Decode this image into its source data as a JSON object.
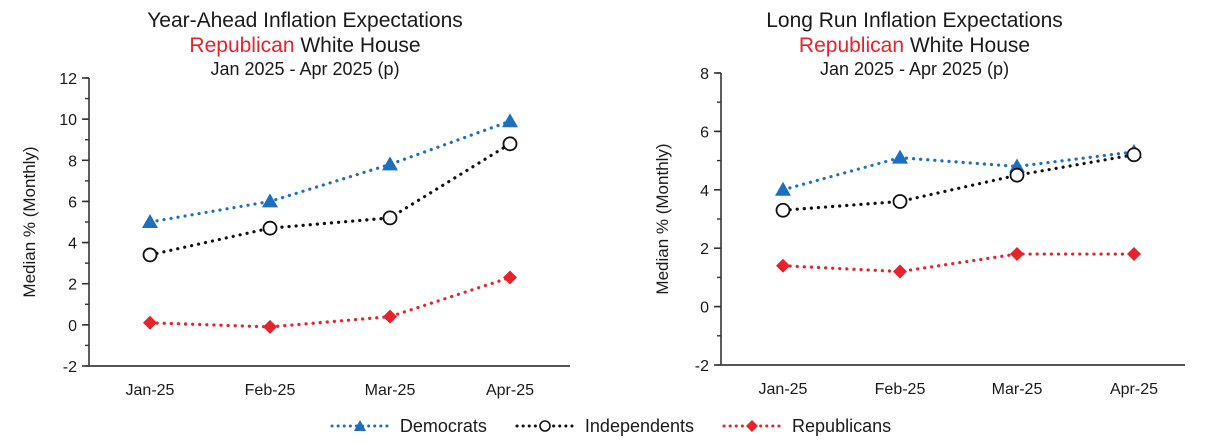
{
  "chart_data": [
    {
      "type": "line",
      "title": "Year-Ahead Inflation Expectations",
      "subtitle_highlight": "Republican",
      "subtitle_rest": " White House",
      "period": "Jan 2025 - Apr 2025 (p)",
      "xlabel": "",
      "ylabel": "Median % (Monthly)",
      "ylim": [
        -2,
        12
      ],
      "yticks": [
        "-2",
        "0",
        "2",
        "4",
        "6",
        "8",
        "10",
        "12"
      ],
      "ytick_values": [
        -2,
        0,
        2,
        4,
        6,
        8,
        10,
        12
      ],
      "minor_step": 1,
      "categories": [
        "Jan-25",
        "Feb-25",
        "Mar-25",
        "Apr-25"
      ],
      "grid": false,
      "series": [
        {
          "name": "Democrats",
          "color": "#1f6fbf",
          "marker": "triangle",
          "values": [
            5.0,
            6.0,
            7.8,
            9.9
          ]
        },
        {
          "name": "Independents",
          "color": "#111111",
          "marker": "circle-open",
          "values": [
            3.4,
            4.7,
            5.2,
            8.8
          ]
        },
        {
          "name": "Republicans",
          "color": "#e8222a",
          "marker": "diamond",
          "values": [
            0.1,
            -0.1,
            0.4,
            2.3
          ]
        }
      ]
    },
    {
      "type": "line",
      "title": "Long Run Inflation Expectations",
      "subtitle_highlight": "Republican",
      "subtitle_rest": " White House",
      "period": "Jan 2025 - Apr 2025 (p)",
      "xlabel": "",
      "ylabel": "Median % (Monthly)",
      "ylim": [
        -2,
        8
      ],
      "yticks": [
        "-2",
        "0",
        "2",
        "4",
        "6",
        "8"
      ],
      "ytick_values": [
        -2,
        0,
        2,
        4,
        6,
        8
      ],
      "minor_step": 1,
      "categories": [
        "Jan-25",
        "Feb-25",
        "Mar-25",
        "Apr-25"
      ],
      "grid": false,
      "series": [
        {
          "name": "Democrats",
          "color": "#1f6fbf",
          "marker": "triangle",
          "values": [
            4.0,
            5.1,
            4.8,
            5.3
          ]
        },
        {
          "name": "Independents",
          "color": "#111111",
          "marker": "circle-open",
          "values": [
            3.3,
            3.6,
            4.5,
            5.2
          ]
        },
        {
          "name": "Republicans",
          "color": "#e8222a",
          "marker": "diamond",
          "values": [
            1.4,
            1.2,
            1.8,
            1.8
          ]
        }
      ]
    }
  ],
  "legend": {
    "placement": "bottom-center",
    "items": [
      {
        "label": "Democrats",
        "color": "#1f6fbf",
        "marker": "triangle"
      },
      {
        "label": "Independents",
        "color": "#111111",
        "marker": "circle-open"
      },
      {
        "label": "Republicans",
        "color": "#e8222a",
        "marker": "diamond"
      }
    ]
  }
}
